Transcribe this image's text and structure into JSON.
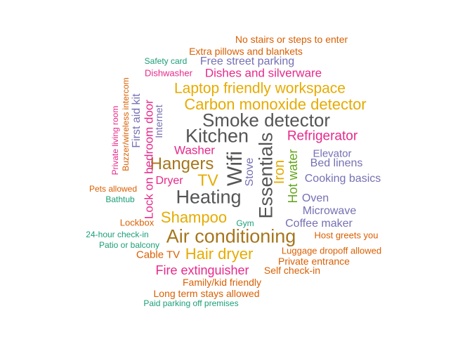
{
  "palette": {
    "teal": "#1b9e77",
    "orange": "#d95f02",
    "purple": "#7570b3",
    "magenta": "#e7298a",
    "green": "#66a61e",
    "gold": "#e6ab02",
    "brown": "#a6761d",
    "gray": "#555555"
  },
  "words": [
    {
      "text": "No stairs or steps to enter",
      "color": "orange"
    },
    {
      "text": "Extra pillows and blankets",
      "color": "orange"
    },
    {
      "text": "Safety card",
      "color": "teal"
    },
    {
      "text": "Free street parking",
      "color": "purple"
    },
    {
      "text": "Dishwasher",
      "color": "magenta"
    },
    {
      "text": "Dishes and silverware",
      "color": "magenta"
    },
    {
      "text": "Laptop friendly workspace",
      "color": "gold"
    },
    {
      "text": "Carbon monoxide detector",
      "color": "gold"
    },
    {
      "text": "Smoke detector",
      "color": "gray"
    },
    {
      "text": "Kitchen",
      "color": "gray"
    },
    {
      "text": "Refrigerator",
      "color": "magenta"
    },
    {
      "text": "Essentials",
      "color": "gray"
    },
    {
      "text": "Wifi",
      "color": "gray"
    },
    {
      "text": "Washer",
      "color": "magenta"
    },
    {
      "text": "Elevator",
      "color": "purple"
    },
    {
      "text": "Bed linens",
      "color": "purple"
    },
    {
      "text": "Hangers",
      "color": "brown"
    },
    {
      "text": "Cooking basics",
      "color": "purple"
    },
    {
      "text": "TV",
      "color": "gold"
    },
    {
      "text": "Dryer",
      "color": "magenta"
    },
    {
      "text": "Stove",
      "color": "purple"
    },
    {
      "text": "Iron",
      "color": "gold"
    },
    {
      "text": "Hot water",
      "color": "green"
    },
    {
      "text": "Heating",
      "color": "gray"
    },
    {
      "text": "Oven",
      "color": "purple"
    },
    {
      "text": "Microwave",
      "color": "purple"
    },
    {
      "text": "Pets allowed",
      "color": "orange"
    },
    {
      "text": "Bathtub",
      "color": "teal"
    },
    {
      "text": "Shampoo",
      "color": "gold"
    },
    {
      "text": "Lockbox",
      "color": "orange"
    },
    {
      "text": "Gym",
      "color": "teal"
    },
    {
      "text": "Coffee maker",
      "color": "purple"
    },
    {
      "text": "Air conditioning",
      "color": "brown"
    },
    {
      "text": "24-hour check-in",
      "color": "teal"
    },
    {
      "text": "Host greets you",
      "color": "orange"
    },
    {
      "text": "Patio or balcony",
      "color": "teal"
    },
    {
      "text": "Cable TV",
      "color": "orange"
    },
    {
      "text": "Hair dryer",
      "color": "gold"
    },
    {
      "text": "Luggage dropoff allowed",
      "color": "orange"
    },
    {
      "text": "Private entrance",
      "color": "orange"
    },
    {
      "text": "Fire extinguisher",
      "color": "magenta"
    },
    {
      "text": "Self check-in",
      "color": "orange"
    },
    {
      "text": "Family/kid friendly",
      "color": "orange"
    },
    {
      "text": "Long term stays allowed",
      "color": "orange"
    },
    {
      "text": "Paid parking off premises",
      "color": "teal"
    },
    {
      "text": "Private living room",
      "color": "magenta"
    },
    {
      "text": "Buzzer/wireless intercom",
      "color": "orange"
    },
    {
      "text": "First aid kit",
      "color": "purple"
    },
    {
      "text": "Lock on bedroom door",
      "color": "magenta"
    },
    {
      "text": "Internet",
      "color": "purple"
    }
  ]
}
